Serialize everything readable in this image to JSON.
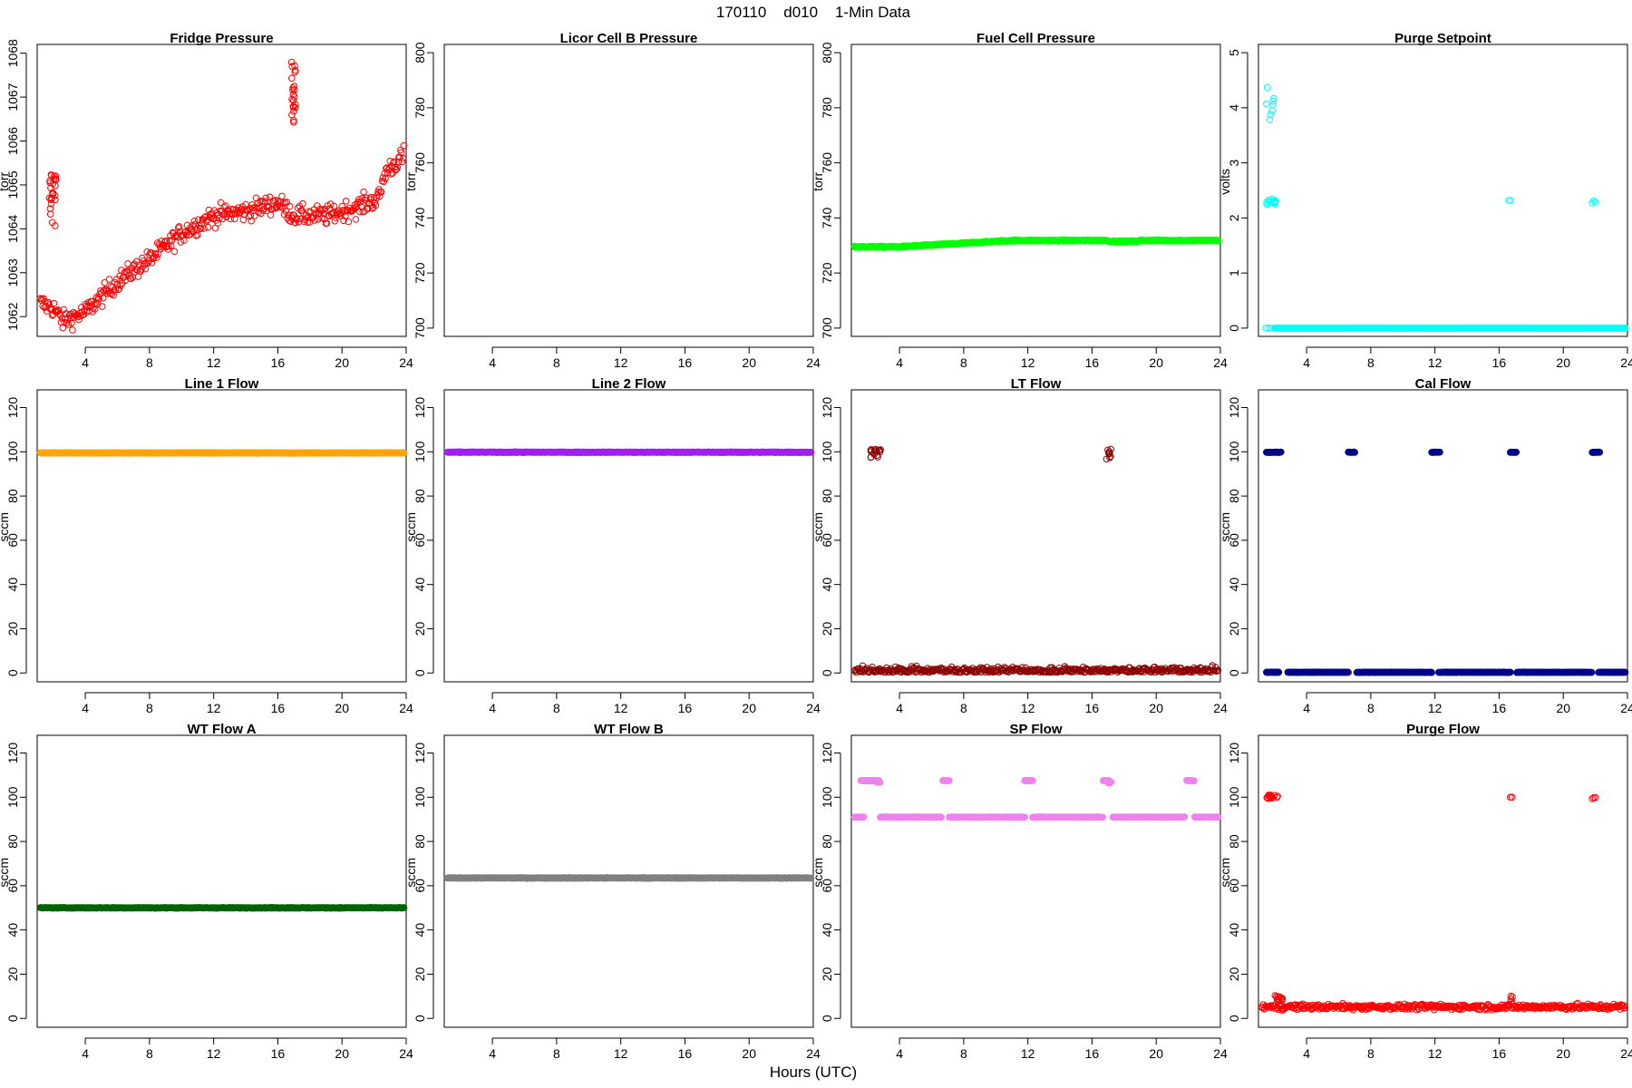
{
  "figure": {
    "title": "170110    d010    1-Min Data",
    "xlabel": "Hours (UTC)"
  },
  "chart_data": [
    {
      "type": "scatter",
      "title": "Fridge Pressure",
      "ylabel": "torr",
      "xlim": [
        1,
        24
      ],
      "ylim": [
        1061.55,
        1068.2
      ],
      "xticks": [
        4,
        8,
        12,
        16,
        20,
        24
      ],
      "yticks": [
        1062,
        1063,
        1064,
        1065,
        1066,
        1067,
        1068
      ],
      "color": "#ff0000",
      "marker": "open",
      "pattern": "fridge"
    },
    {
      "type": "scatter",
      "title": "Licor Cell B Pressure",
      "ylabel": "torr",
      "xlim": [
        1,
        24
      ],
      "ylim": [
        697,
        803
      ],
      "xticks": [
        4,
        8,
        12,
        16,
        20,
        24
      ],
      "yticks": [
        700,
        720,
        740,
        760,
        780,
        800
      ],
      "color": "#000000",
      "marker": "none",
      "pattern": "empty"
    },
    {
      "type": "scatter",
      "title": "Fuel Cell Pressure",
      "ylabel": "torr",
      "xlim": [
        1,
        24
      ],
      "ylim": [
        697,
        803
      ],
      "xticks": [
        4,
        8,
        12,
        16,
        20,
        24
      ],
      "yticks": [
        700,
        720,
        740,
        760,
        780,
        800
      ],
      "color": "#00ff00",
      "marker": "filled",
      "pattern": "fuelcell"
    },
    {
      "type": "scatter",
      "title": "Purge Setpoint",
      "ylabel": "volts",
      "xlim": [
        1,
        24
      ],
      "ylim": [
        -0.15,
        5.15
      ],
      "xticks": [
        4,
        8,
        12,
        16,
        20,
        24
      ],
      "yticks": [
        0,
        1,
        2,
        3,
        4,
        5
      ],
      "color": "#00ffff",
      "marker": "open",
      "pattern": "purgeset"
    },
    {
      "type": "scatter",
      "title": "Line 1 Flow",
      "ylabel": "sccm",
      "xlim": [
        1,
        24
      ],
      "ylim": [
        -4,
        128
      ],
      "xticks": [
        4,
        8,
        12,
        16,
        20,
        24
      ],
      "yticks": [
        0,
        20,
        40,
        60,
        80,
        100,
        120
      ],
      "color": "#ffa500",
      "marker": "filled",
      "pattern": "flat",
      "level": 99.5
    },
    {
      "type": "scatter",
      "title": "Line 2 Flow",
      "ylabel": "sccm",
      "xlim": [
        1,
        24
      ],
      "ylim": [
        -4,
        128
      ],
      "xticks": [
        4,
        8,
        12,
        16,
        20,
        24
      ],
      "yticks": [
        0,
        20,
        40,
        60,
        80,
        100,
        120
      ],
      "color": "#a020f0",
      "marker": "filled",
      "pattern": "flat",
      "level": 99.8
    },
    {
      "type": "scatter",
      "title": "LT Flow",
      "ylabel": "sccm",
      "xlim": [
        1,
        24
      ],
      "ylim": [
        -4,
        128
      ],
      "xticks": [
        4,
        8,
        12,
        16,
        20,
        24
      ],
      "yticks": [
        0,
        20,
        40,
        60,
        80,
        100,
        120
      ],
      "color": "#8b0000",
      "marker": "open",
      "pattern": "ltflow"
    },
    {
      "type": "scatter",
      "title": "Cal Flow",
      "ylabel": "sccm",
      "xlim": [
        1,
        24
      ],
      "ylim": [
        -4,
        128
      ],
      "xticks": [
        4,
        8,
        12,
        16,
        20,
        24
      ],
      "yticks": [
        0,
        20,
        40,
        60,
        80,
        100,
        120
      ],
      "color": "#00008b",
      "marker": "filled",
      "pattern": "calflow"
    },
    {
      "type": "scatter",
      "title": "WT Flow A",
      "ylabel": "sccm",
      "xlim": [
        1,
        24
      ],
      "ylim": [
        -4,
        128
      ],
      "xticks": [
        4,
        8,
        12,
        16,
        20,
        24
      ],
      "yticks": [
        0,
        20,
        40,
        60,
        80,
        100,
        120
      ],
      "color": "#006400",
      "marker": "filled",
      "pattern": "flat",
      "level": 50
    },
    {
      "type": "scatter",
      "title": "WT Flow B",
      "ylabel": "sccm",
      "xlim": [
        1,
        24
      ],
      "ylim": [
        -4,
        128
      ],
      "xticks": [
        4,
        8,
        12,
        16,
        20,
        24
      ],
      "yticks": [
        0,
        20,
        40,
        60,
        80,
        100,
        120
      ],
      "color": "#808080",
      "marker": "filled",
      "pattern": "flat",
      "level": 63.5
    },
    {
      "type": "scatter",
      "title": "SP Flow",
      "ylabel": "sccm",
      "xlim": [
        1,
        24
      ],
      "ylim": [
        -4,
        128
      ],
      "xticks": [
        4,
        8,
        12,
        16,
        20,
        24
      ],
      "yticks": [
        0,
        20,
        40,
        60,
        80,
        100,
        120
      ],
      "color": "#ee82ee",
      "marker": "filled",
      "pattern": "spflow"
    },
    {
      "type": "scatter",
      "title": "Purge Flow",
      "ylabel": "sccm",
      "xlim": [
        1,
        24
      ],
      "ylim": [
        -4,
        128
      ],
      "xticks": [
        4,
        8,
        12,
        16,
        20,
        24
      ],
      "yticks": [
        0,
        20,
        40,
        60,
        80,
        100,
        120
      ],
      "color": "#ff0000",
      "marker": "open",
      "pattern": "purgeflow"
    }
  ]
}
